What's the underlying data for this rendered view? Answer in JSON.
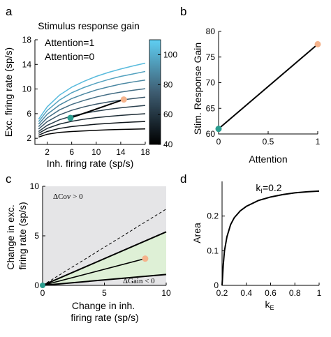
{
  "chart_data": [
    {
      "panel": "a",
      "type": "line",
      "title": "Stimulus response gain",
      "xlabel": "Inh. firing rate (sp/s)",
      "ylabel": "Exc. firing rate (sp/s)",
      "xlim": [
        0,
        18
      ],
      "ylim": [
        1,
        18
      ],
      "xticks": [
        "2",
        "6",
        "10",
        "14",
        "18"
      ],
      "yticks": [
        "2",
        "6",
        "10",
        "14",
        "18"
      ],
      "colorbar": {
        "ticks": [
          "40",
          "60",
          "80",
          "100"
        ],
        "range": [
          40,
          110
        ]
      },
      "legend": [
        "Attention=1",
        "Attention=0"
      ],
      "legend_colors": [
        "#f5b38c",
        "#2a9d8f"
      ],
      "curves": [
        {
          "level": 40,
          "x": [
            0.6,
            2,
            4,
            6,
            8,
            10,
            12,
            14,
            16,
            18
          ],
          "y": [
            2.2,
            2.65,
            2.95,
            3.1,
            3.2,
            3.3,
            3.38,
            3.43,
            3.48,
            3.52
          ]
        },
        {
          "level": 48,
          "x": [
            0.6,
            2,
            4,
            6,
            8,
            10,
            12,
            14,
            16,
            18
          ],
          "y": [
            2.5,
            3.1,
            3.6,
            3.9,
            4.1,
            4.28,
            4.42,
            4.54,
            4.64,
            4.72
          ]
        },
        {
          "level": 56,
          "x": [
            0.6,
            2,
            4,
            6,
            8,
            10,
            12,
            14,
            16,
            18
          ],
          "y": [
            2.8,
            3.6,
            4.3,
            4.75,
            5.1,
            5.35,
            5.55,
            5.72,
            5.86,
            5.98
          ]
        },
        {
          "level": 64,
          "x": [
            0.6,
            2,
            4,
            6,
            8,
            10,
            12,
            14,
            16,
            18
          ],
          "y": [
            3.1,
            4.1,
            5.0,
            5.6,
            6.05,
            6.4,
            6.7,
            6.95,
            7.15,
            7.33
          ]
        },
        {
          "level": 72,
          "x": [
            0.6,
            2,
            4,
            6,
            8,
            10,
            12,
            14,
            16,
            18
          ],
          "y": [
            3.5,
            4.7,
            5.8,
            6.55,
            7.1,
            7.55,
            7.9,
            8.2,
            8.45,
            8.68
          ]
        },
        {
          "level": 80,
          "x": [
            0.6,
            2,
            4,
            6,
            8,
            10,
            12,
            14,
            16,
            18
          ],
          "y": [
            3.9,
            5.3,
            6.6,
            7.5,
            8.15,
            8.7,
            9.15,
            9.5,
            9.8,
            10.05
          ]
        },
        {
          "level": 88,
          "x": [
            0.6,
            2,
            4,
            6,
            8,
            10,
            12,
            14,
            16,
            18
          ],
          "y": [
            4.3,
            5.9,
            7.4,
            8.45,
            9.2,
            9.85,
            10.35,
            10.8,
            11.15,
            11.45
          ]
        },
        {
          "level": 96,
          "x": [
            0.6,
            2,
            4,
            6,
            8,
            10,
            12,
            14,
            16,
            18
          ],
          "y": [
            4.7,
            6.5,
            8.2,
            9.4,
            10.25,
            10.95,
            11.55,
            12.05,
            12.45,
            12.85
          ]
        },
        {
          "level": 104,
          "x": [
            0.6,
            2,
            4,
            6,
            8,
            10,
            12,
            14,
            16,
            18
          ],
          "y": [
            5.1,
            7.1,
            9.0,
            10.3,
            11.25,
            12.05,
            12.7,
            13.25,
            13.75,
            14.2
          ]
        }
      ],
      "segment": {
        "x": [
          5.8,
          14.5
        ],
        "y": [
          5.3,
          8.3
        ]
      },
      "points": [
        {
          "label": "Attention=0",
          "x": 5.8,
          "y": 5.3
        },
        {
          "label": "Attention=1",
          "x": 14.5,
          "y": 8.3
        }
      ]
    },
    {
      "panel": "b",
      "type": "line",
      "xlabel": "Attention",
      "ylabel": "Stim. Response Gain",
      "xlim": [
        0,
        1
      ],
      "ylim": [
        60,
        80
      ],
      "xticks": [
        "0",
        "0.5",
        "1"
      ],
      "yticks": [
        "60",
        "65",
        "70",
        "75",
        "80"
      ],
      "x": [
        0,
        1
      ],
      "y": [
        61,
        77.5
      ]
    },
    {
      "panel": "c",
      "type": "area",
      "xlabel": "Change in inh. firing rate (sp/s)",
      "ylabel": "Change in exc. firing rate (sp/s)",
      "xlim": [
        0,
        10
      ],
      "ylim": [
        0,
        10
      ],
      "xticks": [
        "0",
        "5",
        "10"
      ],
      "yticks": [
        "0",
        "5",
        "10"
      ],
      "annotations": [
        "ΔCov > 0",
        "ΔGain < 0"
      ],
      "dashed_line": {
        "x": [
          0,
          10
        ],
        "y": [
          0,
          7.7
        ]
      },
      "upper_bound": {
        "x": [
          0,
          10
        ],
        "y": [
          0,
          5.4
        ]
      },
      "lower_bound": {
        "x": [
          0,
          10
        ],
        "y": [
          0,
          1.1
        ]
      },
      "segment": {
        "x": [
          0,
          8.3
        ],
        "y": [
          0,
          2.7
        ]
      },
      "points": [
        {
          "label": "Attention=0",
          "x": 0,
          "y": 0
        },
        {
          "label": "Attention=1",
          "x": 8.3,
          "y": 2.7
        }
      ]
    },
    {
      "panel": "d",
      "type": "line",
      "title": "k_I=0.2",
      "xlabel": "k_E",
      "ylabel": "Area",
      "xlim": [
        0.2,
        1
      ],
      "ylim": [
        0,
        0.3
      ],
      "xticks": [
        "0.2",
        "0.4",
        "0.6",
        "0.8",
        "1"
      ],
      "yticks": [
        "0",
        "0.1",
        "0.2"
      ],
      "x": [
        0.2,
        0.21,
        0.22,
        0.24,
        0.27,
        0.3,
        0.35,
        0.4,
        0.5,
        0.6,
        0.7,
        0.8,
        0.9,
        1.0
      ],
      "y": [
        0.0,
        0.06,
        0.1,
        0.14,
        0.175,
        0.195,
        0.215,
        0.228,
        0.245,
        0.255,
        0.262,
        0.267,
        0.27,
        0.272
      ]
    }
  ],
  "colors": {
    "attention0": "#2a9d8f",
    "attention1": "#f5b38c",
    "panel_c_background": "#e5e5e7",
    "panel_c_fill": "#def0d6",
    "colorbar_low": "#000000",
    "colorbar_high": "#5fcff3"
  },
  "panel_labels": [
    "a",
    "b",
    "c",
    "d"
  ]
}
